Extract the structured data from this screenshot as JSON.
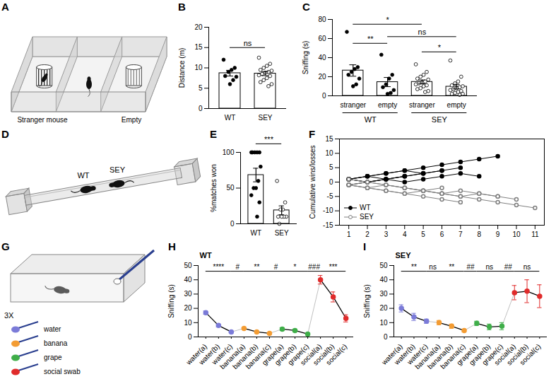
{
  "diagrams": [
    {
      "panel": "A",
      "type": "three-chamber",
      "labels": [
        "Stranger mouse",
        "Empty"
      ]
    },
    {
      "panel": "D",
      "type": "tube",
      "labels": [
        "WT",
        "SEY"
      ]
    },
    {
      "panel": "G",
      "type": "swab",
      "repeat_label": "3X",
      "swabs": [
        {
          "name": "water",
          "color": "#7b7bd8"
        },
        {
          "name": "banana",
          "color": "#f39c33"
        },
        {
          "name": "grape",
          "color": "#3fae49"
        },
        {
          "name": "social swab",
          "color": "#e02b2b"
        }
      ]
    }
  ],
  "chart_data": [
    {
      "panel": "B",
      "type": "bar",
      "categories": [
        "WT",
        "SEY"
      ],
      "values": [
        8.7,
        8.6
      ],
      "errors": [
        0.7,
        0.5
      ],
      "color": "#ffffff",
      "marker": [
        "filled",
        "open"
      ],
      "points": [
        [
          12,
          10,
          9.5,
          9,
          8,
          7.8,
          7,
          6
        ],
        [
          12.5,
          11,
          10.5,
          10,
          9.5,
          9.3,
          9,
          8.8,
          8.5,
          8.2,
          8,
          7.5,
          7,
          6.5,
          6,
          5.5
        ]
      ],
      "ylabel": "Distance (m)",
      "ylim": [
        0,
        20
      ],
      "yticks": [
        0,
        5,
        10,
        15,
        20
      ],
      "annotations": [
        {
          "from": 0,
          "to": 1,
          "y": 15,
          "label": "ns"
        }
      ]
    },
    {
      "panel": "C",
      "type": "bar",
      "categories": [
        "stranger",
        "empty",
        "stranger",
        "empty"
      ],
      "values": [
        26.5,
        14.4,
        14.6,
        9.6
      ],
      "errors": [
        6,
        4.8,
        2,
        2.4
      ],
      "color": "#ffffff",
      "marker": [
        "filled",
        "filled",
        "open",
        "open"
      ],
      "points": [
        [
          67,
          30,
          28,
          25,
          22,
          18,
          12,
          10
        ],
        [
          43,
          22,
          18,
          12,
          9,
          6,
          3,
          2
        ],
        [
          33,
          25,
          22,
          20,
          18,
          17,
          15,
          14,
          13,
          12,
          11,
          10,
          8,
          7,
          5,
          4
        ],
        [
          37,
          20,
          15,
          13,
          11,
          10,
          9,
          8,
          7,
          6,
          5,
          4,
          3,
          2,
          2,
          1
        ]
      ],
      "groups": [
        {
          "label": "WT",
          "from": 0,
          "to": 1
        },
        {
          "label": "SEY",
          "from": 2,
          "to": 3
        }
      ],
      "ylabel": "Sniffing (s)",
      "ylim": [
        0,
        80
      ],
      "yticks": [
        0,
        20,
        40,
        60,
        80
      ],
      "annotations": [
        {
          "from": 0,
          "to": 1,
          "y": 55,
          "label": "**"
        },
        {
          "from": 0,
          "to": 2,
          "y": 75,
          "label": "*"
        },
        {
          "from": 1,
          "to": 3,
          "y": 62,
          "label": "ns"
        },
        {
          "from": 2,
          "to": 3,
          "y": 46,
          "label": "*"
        }
      ]
    },
    {
      "panel": "E",
      "type": "bar",
      "categories": [
        "WT",
        "SEY"
      ],
      "values": [
        68.3,
        18.9
      ],
      "errors": [
        9.5,
        6.2
      ],
      "color": "#ffffff",
      "marker": [
        "filled",
        "open"
      ],
      "points": [
        [
          100,
          100,
          100,
          100,
          100,
          80,
          60,
          50,
          50,
          40,
          30,
          10
        ],
        [
          60,
          30,
          20,
          20,
          10,
          10,
          10,
          10,
          0
        ]
      ],
      "ylabel": "%matches won",
      "ylim": [
        0,
        100
      ],
      "yticks": [
        0,
        50,
        100
      ],
      "annotations": [
        {
          "from": 0,
          "to": 1,
          "y": 112,
          "label": "***"
        }
      ]
    },
    {
      "panel": "F",
      "type": "line",
      "x": [
        1,
        2,
        3,
        4,
        5,
        6,
        7,
        8,
        9,
        10,
        11
      ],
      "xlim": [
        0.5,
        11.5
      ],
      "xticks": [
        1,
        2,
        3,
        4,
        5,
        6,
        7,
        8,
        9,
        10,
        11
      ],
      "ylabel": "Cumulative wins/losses",
      "ylim": [
        -15,
        15
      ],
      "yticks": [
        -15,
        -10,
        -5,
        0,
        5,
        10,
        15
      ],
      "legend": "bottom-left",
      "series": [
        {
          "name": "WT",
          "color": "#000000",
          "marker": "filled",
          "lines": [
            [
              1,
              2,
              3,
              4,
              5,
              6,
              7,
              8,
              9,
              null,
              null
            ],
            [
              1,
              2,
              1,
              2,
              3,
              4,
              5,
              null,
              null,
              null,
              null
            ],
            [
              1,
              2,
              3,
              4,
              3,
              null,
              null,
              null,
              null,
              null,
              null
            ],
            [
              1,
              0,
              1,
              2,
              3,
              4,
              null,
              null,
              null,
              null,
              null
            ],
            [
              -1,
              0,
              1,
              2,
              null,
              null,
              null,
              null,
              null,
              null,
              null
            ],
            [
              1,
              0,
              1,
              0,
              1,
              2,
              3,
              2,
              null,
              null,
              null
            ]
          ]
        },
        {
          "name": "SEY",
          "color": "#808080",
          "marker": "open",
          "lines": [
            [
              -1,
              -2,
              -3,
              -4,
              -3,
              -4,
              -5,
              -6,
              -7,
              -8,
              -9
            ],
            [
              -1,
              -2,
              -1,
              -2,
              -3,
              -4,
              -3,
              -4,
              -5,
              -6,
              null
            ],
            [
              -1,
              -2,
              -3,
              -4,
              -5,
              -6,
              -7,
              null,
              null,
              null,
              null
            ],
            [
              1,
              0,
              -1,
              -2,
              -3,
              -4,
              -5,
              -4,
              -5,
              null,
              null
            ],
            [
              -1,
              0,
              -1,
              -2,
              -3,
              -2,
              null,
              null,
              null,
              null,
              null
            ]
          ]
        }
      ]
    },
    {
      "panel": "H",
      "type": "line",
      "title": "WT",
      "categories": [
        "water(a)",
        "water(b)",
        "water(c)",
        "banana(a)",
        "banana(b)",
        "banana(c)",
        "grape(a)",
        "grape(b)",
        "grape(c)",
        "social(a)",
        "social(b)",
        "social(c)"
      ],
      "values": [
        17,
        8,
        3.5,
        6,
        3.5,
        2.5,
        5.5,
        4.5,
        2,
        40,
        28,
        13
      ],
      "errors": [
        1.2,
        1,
        0.5,
        0.6,
        0.5,
        0.4,
        1,
        1,
        0.5,
        3,
        3.5,
        2.5
      ],
      "colors": [
        "#7b7bd8",
        "#7b7bd8",
        "#7b7bd8",
        "#f39c33",
        "#f39c33",
        "#f39c33",
        "#3fae49",
        "#3fae49",
        "#3fae49",
        "#e02b2b",
        "#e02b2b",
        "#e02b2b"
      ],
      "ylabel": "Sniffing (s)",
      "ylim": [
        0,
        50
      ],
      "yticks": [
        0,
        10,
        20,
        30,
        40,
        50
      ],
      "annotations": [
        {
          "from": 0,
          "to": 2,
          "y": 46,
          "label": "****"
        },
        {
          "from": 2,
          "to": 3,
          "y": 46,
          "label": "#"
        },
        {
          "from": 3,
          "to": 5,
          "y": 46,
          "label": "**"
        },
        {
          "from": 5,
          "to": 6,
          "y": 46,
          "label": "#"
        },
        {
          "from": 6,
          "to": 8,
          "y": 46,
          "label": "*"
        },
        {
          "from": 8,
          "to": 9,
          "y": 46,
          "label": "###"
        },
        {
          "from": 9,
          "to": 11,
          "y": 46,
          "label": "***"
        }
      ]
    },
    {
      "panel": "I",
      "type": "line",
      "title": "SEY",
      "categories": [
        "water(a)",
        "water(b)",
        "water(c)",
        "banana(a)",
        "banana(b)",
        "banana(c)",
        "grape(a)",
        "grape(b)",
        "grape(c)",
        "social(a)",
        "social(b)",
        "social(c)"
      ],
      "values": [
        20,
        14,
        11,
        10,
        7.5,
        4.5,
        9.5,
        7,
        7.5,
        31,
        32,
        28.5
      ],
      "errors": [
        2.5,
        2.5,
        1.5,
        1.5,
        1.5,
        1,
        1.5,
        2,
        2.5,
        5,
        8,
        8
      ],
      "colors": [
        "#7b7bd8",
        "#7b7bd8",
        "#7b7bd8",
        "#f39c33",
        "#f39c33",
        "#f39c33",
        "#3fae49",
        "#3fae49",
        "#3fae49",
        "#e02b2b",
        "#e02b2b",
        "#e02b2b"
      ],
      "ylabel": "Sniffing (s)",
      "ylim": [
        0,
        50
      ],
      "yticks": [
        0,
        10,
        20,
        30,
        40,
        50
      ],
      "annotations": [
        {
          "from": 0,
          "to": 2,
          "y": 46,
          "label": "**"
        },
        {
          "from": 2,
          "to": 3,
          "y": 46,
          "label": "ns"
        },
        {
          "from": 3,
          "to": 5,
          "y": 46,
          "label": "**"
        },
        {
          "from": 5,
          "to": 6,
          "y": 46,
          "label": "##"
        },
        {
          "from": 6,
          "to": 8,
          "y": 46,
          "label": "ns"
        },
        {
          "from": 8,
          "to": 9,
          "y": 46,
          "label": "##"
        },
        {
          "from": 9,
          "to": 11,
          "y": 46,
          "label": "ns"
        }
      ]
    }
  ]
}
